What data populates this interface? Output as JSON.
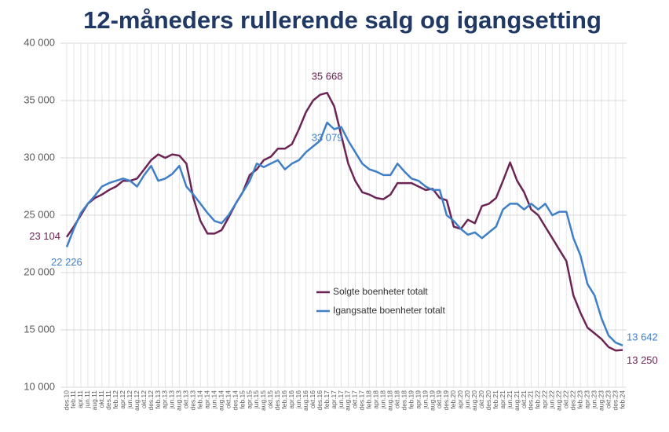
{
  "chart_data": {
    "type": "line",
    "title": "12-måneders rullerende salg og igangsetting",
    "categories": [
      "des.10",
      "feb.11",
      "apr.11",
      "jun.11",
      "aug.11",
      "okt.11",
      "des.11",
      "feb.12",
      "apr.12",
      "jun.12",
      "aug.12",
      "okt.12",
      "des.12",
      "feb.13",
      "apr.13",
      "jun.13",
      "aug.13",
      "okt.13",
      "des.13",
      "feb.14",
      "apr.14",
      "jun.14",
      "aug.14",
      "okt.14",
      "des.14",
      "feb.15",
      "apr.15",
      "jun.15",
      "aug.15",
      "okt.15",
      "des.15",
      "feb.16",
      "apr.16",
      "jun.16",
      "aug.16",
      "okt.16",
      "des.16",
      "feb.17",
      "apr.17",
      "jun.17",
      "aug.17",
      "okt.17",
      "des.17",
      "feb.18",
      "apr.18",
      "jun.18",
      "aug.18",
      "okt.18",
      "des.18",
      "feb.19",
      "apr.19",
      "jun.19",
      "aug.19",
      "okt.19",
      "des.19",
      "feb.20",
      "apr.20",
      "jun.20",
      "aug.20",
      "okt.20",
      "des.20",
      "feb.21",
      "apr.21",
      "jun.21",
      "aug.21",
      "okt.21",
      "des.21",
      "feb.22",
      "apr.22",
      "jun.22",
      "aug.22",
      "okt.22",
      "des.22",
      "feb.23",
      "apr.23",
      "jun.23",
      "aug.23",
      "okt.23",
      "des.23",
      "feb.24"
    ],
    "series": [
      {
        "name": "Solgte boenheter totalt",
        "color": "#6b2454",
        "values": [
          23104,
          24000,
          25000,
          26000,
          26500,
          26800,
          27200,
          27500,
          28000,
          28000,
          28200,
          29000,
          29800,
          30300,
          30000,
          30300,
          30200,
          29500,
          26500,
          24500,
          23400,
          23400,
          23700,
          24800,
          26000,
          27000,
          28500,
          29000,
          29800,
          30100,
          30800,
          30800,
          31200,
          32500,
          34000,
          35000,
          35500,
          35668,
          34500,
          32000,
          29500,
          28000,
          27000,
          26800,
          26500,
          26400,
          26800,
          27800,
          27800,
          27800,
          27500,
          27200,
          27300,
          26500,
          26300,
          24000,
          23800,
          24600,
          24300,
          25800,
          26000,
          26500,
          28000,
          29600,
          28000,
          27000,
          25500,
          25000,
          24000,
          23000,
          22000,
          21000,
          18000,
          16500,
          15200,
          14700,
          14200,
          13500,
          13200,
          13250
        ],
        "value_labels": [
          "23 104",
          null,
          null,
          null,
          null,
          null,
          null,
          null,
          null,
          null,
          null,
          null,
          null,
          null,
          null,
          null,
          null,
          null,
          null,
          null,
          null,
          null,
          null,
          null,
          null,
          null,
          null,
          null,
          null,
          null,
          null,
          null,
          null,
          null,
          null,
          null,
          null,
          "35 668",
          null,
          null,
          null,
          null,
          null,
          null,
          null,
          null,
          null,
          null,
          null,
          null,
          null,
          null,
          null,
          null,
          null,
          null,
          null,
          null,
          null,
          null,
          null,
          null,
          null,
          null,
          null,
          null,
          null,
          null,
          null,
          null,
          null,
          null,
          null,
          null,
          null,
          null,
          null,
          null,
          null,
          "13 250"
        ]
      },
      {
        "name": "Igangsatte boenheter totalt",
        "color": "#3f7fc7",
        "values": [
          22226,
          23800,
          25200,
          26000,
          26700,
          27500,
          27800,
          28000,
          28200,
          28000,
          27500,
          28500,
          29300,
          28000,
          28200,
          28600,
          29300,
          27500,
          26800,
          26000,
          25200,
          24500,
          24300,
          25000,
          26000,
          27000,
          28000,
          29500,
          29200,
          29500,
          29800,
          29000,
          29500,
          29800,
          30500,
          31000,
          31500,
          33079,
          32500,
          32700,
          31500,
          30500,
          29500,
          29000,
          28800,
          28500,
          28500,
          29500,
          28800,
          28200,
          28000,
          27500,
          27200,
          27200,
          25000,
          24500,
          23800,
          23300,
          23500,
          23000,
          23500,
          24000,
          25500,
          26000,
          26000,
          25500,
          26000,
          25500,
          26000,
          25000,
          25300,
          25300,
          23000,
          21500,
          19000,
          18000,
          16000,
          14500,
          13900,
          13642
        ],
        "value_labels": [
          "22 226",
          null,
          null,
          null,
          null,
          null,
          null,
          null,
          null,
          null,
          null,
          null,
          null,
          null,
          null,
          null,
          null,
          null,
          null,
          null,
          null,
          null,
          null,
          null,
          null,
          null,
          null,
          null,
          null,
          null,
          null,
          null,
          null,
          null,
          null,
          null,
          null,
          "33 079",
          null,
          null,
          null,
          null,
          null,
          null,
          null,
          null,
          null,
          null,
          null,
          null,
          null,
          null,
          null,
          null,
          null,
          null,
          null,
          null,
          null,
          null,
          null,
          null,
          null,
          null,
          null,
          null,
          null,
          null,
          null,
          null,
          null,
          null,
          null,
          null,
          null,
          null,
          null,
          null,
          null,
          "13 642"
        ]
      }
    ],
    "ylim": [
      10000,
      40000
    ],
    "yticks": [
      {
        "value": 10000,
        "label": "10 000"
      },
      {
        "value": 15000,
        "label": "15 000"
      },
      {
        "value": 20000,
        "label": "20 000"
      },
      {
        "value": 25000,
        "label": "25 000"
      },
      {
        "value": 30000,
        "label": "30 000"
      },
      {
        "value": 35000,
        "label": "35 000"
      },
      {
        "value": 40000,
        "label": "40 000"
      }
    ],
    "grid": true
  }
}
